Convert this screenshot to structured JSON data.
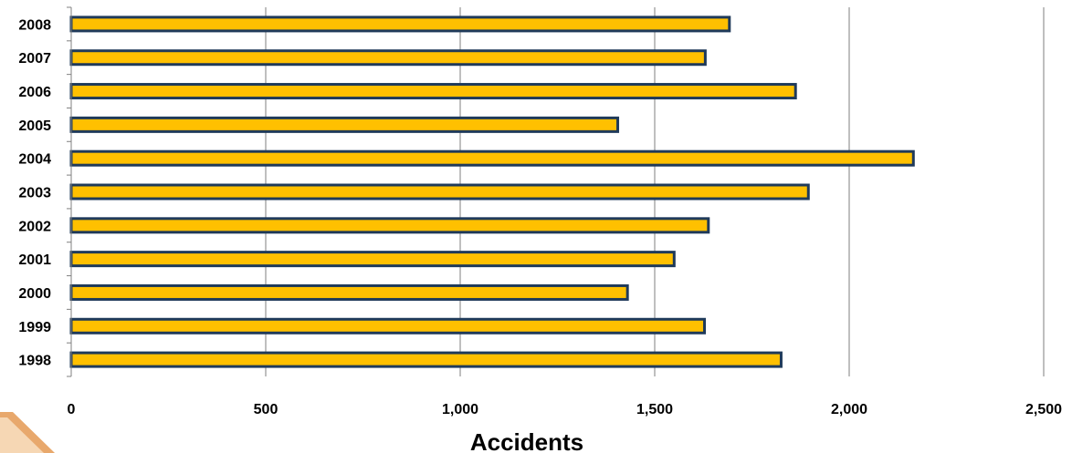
{
  "chart_data": {
    "type": "bar",
    "orientation": "horizontal",
    "title": "",
    "xlabel": "Accidents",
    "ylabel": "",
    "categories": [
      "1998",
      "1999",
      "2000",
      "2001",
      "2002",
      "2003",
      "2004",
      "2005",
      "2006",
      "2007",
      "2008"
    ],
    "values": [
      1825,
      1628,
      1430,
      1550,
      1638,
      1895,
      2165,
      1405,
      1862,
      1630,
      1692
    ],
    "xlim": [
      0,
      2500
    ],
    "xticks": [
      0,
      500,
      1000,
      1500,
      2000,
      2500
    ],
    "xtick_labels": [
      "0",
      "500",
      "1,000",
      "1,500",
      "2,000",
      "2,500"
    ],
    "grid": true,
    "bar_color": "#FFC000",
    "bar_edge_color": "#1F3A5A",
    "grid_color": "#7F7F7F"
  }
}
